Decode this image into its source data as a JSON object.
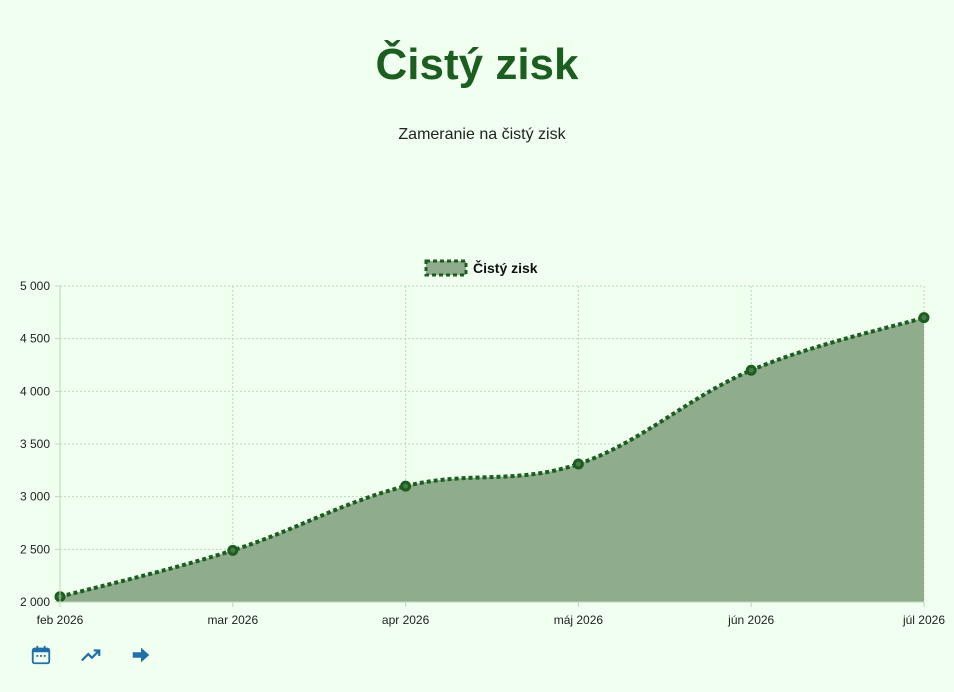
{
  "header": {
    "title": "Čistý zisk",
    "subtitle": "Zameranie na čistý zisk"
  },
  "colors": {
    "background": "#f0fff0",
    "line": "#1b5e20",
    "fill": "#8fad8d",
    "grid": "#b9d9b9",
    "icon": "#1f6fa8"
  },
  "chart_data": {
    "type": "area",
    "x": [
      "feb 2026",
      "mar 2026",
      "apr 2026",
      "máj 2026",
      "jún 2026",
      "júl 2026"
    ],
    "series": [
      {
        "name": "Čistý zisk",
        "values": [
          2050,
          2490,
          3100,
          3310,
          4200,
          4700
        ]
      }
    ],
    "yticks": [
      "2 000",
      "2 500",
      "3 000",
      "3 500",
      "4 000",
      "4 500",
      "5 000"
    ],
    "ylim": [
      2000,
      5000
    ],
    "grid": true,
    "legend": "top-center",
    "line_style": "dashed"
  },
  "toolbar": {
    "icons": [
      "calendar-icon",
      "trend-up-icon",
      "arrow-right-icon"
    ]
  }
}
